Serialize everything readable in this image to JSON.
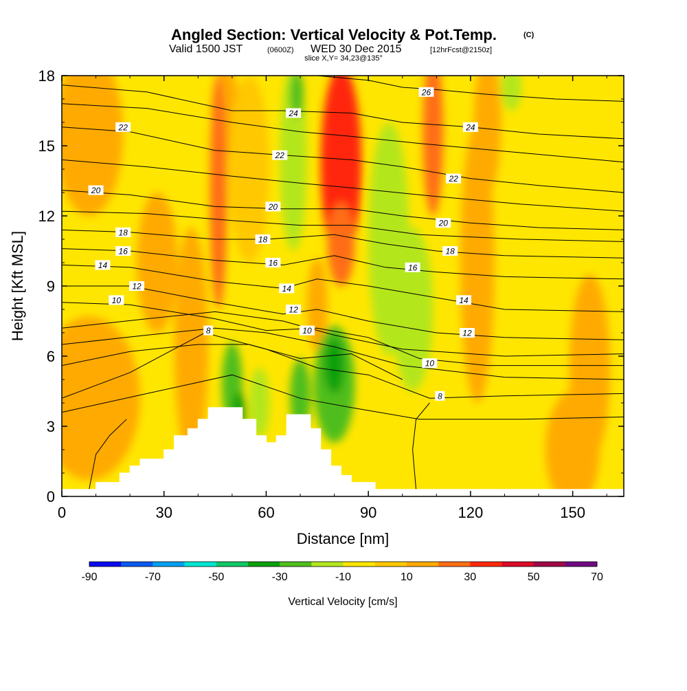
{
  "chart_data": {
    "type": "heatmap",
    "title": "Angled Section: Vertical Velocity & Pot.Temp.",
    "title_tag": "(C)",
    "subtitle": {
      "valid": "Valid 1500 JST",
      "utc": "(0600Z)",
      "date": "WED 30 Dec 2015",
      "forecast": "[12hrFcst@2150z]"
    },
    "slice_label": "slice X,Y= 34,23@135°",
    "xlabel": "Distance [nm]",
    "ylabel": "Height [Kft MSL]",
    "xlim": [
      0,
      165
    ],
    "ylim": [
      0,
      18
    ],
    "xticks": [
      0,
      30,
      60,
      90,
      120,
      150
    ],
    "yticks": [
      0,
      3,
      6,
      9,
      12,
      15,
      18
    ],
    "colorbar": {
      "label": "Vertical Velocity [cm/s]",
      "tick_labels": [
        "-90",
        "-70",
        "-50",
        "-30",
        "-10",
        "10",
        "30",
        "50",
        "70"
      ],
      "boundaries": [
        -90,
        -80,
        -70,
        -60,
        -50,
        -40,
        -30,
        -20,
        -10,
        0,
        10,
        20,
        30,
        40,
        50,
        60,
        70
      ],
      "colors": [
        "#0a0af0",
        "#0a5af0",
        "#00a0f0",
        "#00e6d2",
        "#10c864",
        "#0ca00c",
        "#50be1e",
        "#b4e61e",
        "#ffe600",
        "#ffc800",
        "#ffaa00",
        "#ff6e14",
        "#ff280a",
        "#dc0a28",
        "#a00a46",
        "#6e0a82"
      ]
    },
    "terrain": {
      "x": [
        0,
        10,
        10,
        17,
        17,
        20,
        20,
        23,
        23,
        30,
        30,
        33,
        33,
        37,
        37,
        40,
        40,
        43,
        43,
        47,
        47,
        53,
        53,
        57,
        57,
        60,
        60,
        63,
        63,
        66,
        66,
        73,
        73,
        76,
        76,
        79,
        79,
        82,
        82,
        85,
        85,
        92,
        92,
        165
      ],
      "y": [
        0.3,
        0.3,
        0.6,
        0.6,
        1.0,
        1.0,
        1.3,
        1.3,
        1.6,
        1.6,
        2.0,
        2.0,
        2.6,
        2.6,
        2.9,
        2.9,
        3.3,
        3.3,
        3.8,
        3.8,
        3.8,
        3.8,
        3.3,
        3.3,
        2.6,
        2.6,
        2.3,
        2.3,
        2.6,
        2.6,
        3.5,
        3.5,
        2.9,
        2.9,
        2.0,
        2.0,
        1.3,
        1.3,
        0.9,
        0.9,
        0.6,
        0.6,
        0.3,
        0.3
      ]
    },
    "velocity_features": [
      {
        "x": 6,
        "y": 3.6,
        "rx": 7,
        "ry": 1.5,
        "value": 25
      },
      {
        "x": 8,
        "y": 4.2,
        "rx": 15,
        "ry": 3.5,
        "value": 12
      },
      {
        "x": 8,
        "y": 15.5,
        "rx": 10,
        "ry": 3.5,
        "value": 12
      },
      {
        "x": 48,
        "y": 16.5,
        "rx": 4,
        "ry": 2.0,
        "value": 12
      },
      {
        "x": 46,
        "y": 13.0,
        "rx": 2.5,
        "ry": 5.0,
        "value": 22
      },
      {
        "x": 68,
        "y": 14.5,
        "rx": 4,
        "ry": 4.0,
        "value": -12
      },
      {
        "x": 69,
        "y": 17.2,
        "rx": 2,
        "ry": 1.0,
        "value": -30
      },
      {
        "x": 55,
        "y": 14.0,
        "rx": 6,
        "ry": 4.0,
        "value": 5
      },
      {
        "x": 82,
        "y": 14.2,
        "rx": 6,
        "ry": 4.2,
        "value": 35
      },
      {
        "x": 82,
        "y": 10.8,
        "rx": 4,
        "ry": 1.8,
        "value": 22
      },
      {
        "x": 75,
        "y": 8.2,
        "rx": 3,
        "ry": 2.0,
        "value": 15
      },
      {
        "x": 96,
        "y": 11.0,
        "rx": 6,
        "ry": 5.0,
        "value": -14
      },
      {
        "x": 103,
        "y": 8.0,
        "rx": 6,
        "ry": 3.5,
        "value": -12
      },
      {
        "x": 109,
        "y": 15.5,
        "rx": 3,
        "ry": 3.5,
        "value": 25
      },
      {
        "x": 125,
        "y": 16.0,
        "rx": 4,
        "ry": 3.0,
        "value": 14
      },
      {
        "x": 122,
        "y": 10.0,
        "rx": 5,
        "ry": 6.0,
        "value": 12
      },
      {
        "x": 132,
        "y": 17.5,
        "rx": 3,
        "ry": 1.0,
        "value": -12
      },
      {
        "x": 50,
        "y": 4.8,
        "rx": 3,
        "ry": 1.8,
        "value": -30
      },
      {
        "x": 52,
        "y": 3.5,
        "rx": 2,
        "ry": 1.0,
        "value": -32
      },
      {
        "x": 58,
        "y": 4.0,
        "rx": 3,
        "ry": 1.5,
        "value": -14
      },
      {
        "x": 70,
        "y": 4.3,
        "rx": 3,
        "ry": 1.6,
        "value": -30
      },
      {
        "x": 80,
        "y": 4.8,
        "rx": 6,
        "ry": 2.5,
        "value": -22
      },
      {
        "x": 80,
        "y": 5.6,
        "rx": 3,
        "ry": 1.2,
        "value": -32
      },
      {
        "x": 150,
        "y": 2.0,
        "rx": 8,
        "ry": 2.5,
        "value": 12
      },
      {
        "x": 155,
        "y": 5.5,
        "rx": 6,
        "ry": 4.0,
        "value": 12
      },
      {
        "x": 38,
        "y": 6.5,
        "rx": 5,
        "ry": 5.0,
        "value": 12
      },
      {
        "x": 28,
        "y": 10.0,
        "rx": 6,
        "ry": 3.0,
        "value": 12
      }
    ],
    "isentropes": [
      {
        "label": "8",
        "x": [
          0,
          20,
          42,
          60,
          75,
          90,
          108,
          130,
          165
        ],
        "y": [
          4.2,
          5.3,
          7.0,
          6.3,
          5.5,
          5.2,
          4.2,
          4.3,
          4.4
        ],
        "label_positions": [
          [
            43,
            7.1
          ],
          [
            111,
            4.3
          ]
        ]
      },
      {
        "label": "10",
        "x": [
          0,
          20,
          45,
          60,
          75,
          90,
          105,
          125,
          165
        ],
        "y": [
          8.3,
          8.2,
          7.6,
          7.1,
          7.2,
          6.8,
          5.9,
          5.6,
          5.6
        ],
        "label_positions": [
          [
            16,
            8.4
          ],
          [
            72,
            7.1
          ],
          [
            108,
            5.7
          ]
        ]
      },
      {
        "label": "12",
        "x": [
          0,
          20,
          45,
          65,
          75,
          90,
          110,
          130,
          165
        ],
        "y": [
          9.0,
          9.0,
          8.3,
          7.8,
          8.0,
          7.5,
          7.0,
          6.8,
          6.7
        ],
        "label_positions": [
          [
            22,
            9.0
          ],
          [
            68,
            8.0
          ],
          [
            119,
            7.0
          ]
        ]
      },
      {
        "label": "14",
        "x": [
          0,
          20,
          45,
          65,
          75,
          90,
          110,
          130,
          165
        ],
        "y": [
          9.9,
          9.8,
          9.2,
          8.9,
          9.3,
          9.0,
          8.5,
          8.0,
          7.9
        ],
        "label_positions": [
          [
            12,
            9.9
          ],
          [
            66,
            8.9
          ],
          [
            118,
            8.4
          ]
        ]
      },
      {
        "label": "16",
        "x": [
          0,
          20,
          45,
          65,
          80,
          95,
          110,
          130,
          165
        ],
        "y": [
          10.6,
          10.5,
          10.1,
          9.9,
          10.3,
          9.8,
          9.6,
          9.4,
          9.3
        ],
        "label_positions": [
          [
            18,
            10.5
          ],
          [
            62,
            10.0
          ],
          [
            103,
            9.8
          ]
        ]
      },
      {
        "label": "18",
        "x": [
          0,
          20,
          45,
          60,
          80,
          95,
          110,
          130,
          165
        ],
        "y": [
          11.4,
          11.3,
          11.0,
          11.0,
          11.2,
          10.8,
          10.5,
          10.3,
          10.2
        ],
        "label_positions": [
          [
            18,
            11.3
          ],
          [
            59,
            11.0
          ],
          [
            114,
            10.5
          ]
        ]
      },
      {
        "label": "20",
        "x": [
          0,
          20,
          45,
          65,
          85,
          100,
          120,
          140,
          165
        ],
        "y": [
          13.1,
          12.9,
          12.4,
          12.3,
          12.3,
          12.0,
          11.7,
          11.5,
          11.4
        ],
        "label_positions": [
          [
            10,
            13.1
          ],
          [
            62,
            12.4
          ],
          [
            112,
            11.7
          ]
        ]
      },
      {
        "label": "22",
        "x": [
          0,
          20,
          45,
          65,
          85,
          100,
          120,
          140,
          165
        ],
        "y": [
          15.8,
          15.6,
          14.8,
          14.6,
          14.4,
          14.1,
          13.6,
          13.3,
          13.0
        ],
        "label_positions": [
          [
            18,
            15.8
          ],
          [
            64,
            14.6
          ],
          [
            115,
            13.6
          ]
        ]
      },
      {
        "label": "24",
        "x": [
          0,
          25,
          50,
          65,
          85,
          100,
          120,
          140,
          165
        ],
        "y": [
          17.6,
          17.3,
          16.5,
          16.5,
          16.4,
          16.0,
          15.8,
          15.5,
          15.3
        ],
        "label_positions": [
          [
            68,
            16.4
          ],
          [
            120,
            15.8
          ]
        ]
      },
      {
        "label": "26",
        "x": [
          75,
          90,
          100,
          110,
          125,
          145,
          165
        ],
        "y": [
          18.0,
          17.8,
          17.5,
          17.4,
          17.2,
          17.0,
          16.9
        ],
        "label_positions": [
          [
            107,
            17.3
          ]
        ]
      }
    ],
    "extra_contours": [
      {
        "x": [
          0,
          20,
          40,
          55,
          70,
          85,
          100
        ],
        "y": [
          5.6,
          6.2,
          6.5,
          6.5,
          5.9,
          6.1,
          5.0
        ]
      },
      {
        "x": [
          0,
          25,
          45,
          60,
          80,
          100,
          130,
          165
        ],
        "y": [
          6.5,
          6.9,
          7.2,
          7.0,
          6.4,
          5.6,
          5.1,
          5.0
        ]
      },
      {
        "x": [
          0,
          25,
          45,
          65,
          80,
          100,
          130,
          165
        ],
        "y": [
          7.2,
          7.6,
          7.9,
          7.5,
          6.9,
          6.3,
          6.0,
          6.1
        ]
      },
      {
        "x": [
          0,
          25,
          50,
          70,
          85,
          105,
          135,
          165
        ],
        "y": [
          12.2,
          12.1,
          11.8,
          11.6,
          11.6,
          11.2,
          11.0,
          10.9
        ]
      },
      {
        "x": [
          0,
          25,
          50,
          70,
          85,
          105,
          135,
          165
        ],
        "y": [
          14.4,
          14.1,
          13.7,
          13.4,
          13.2,
          12.9,
          12.5,
          12.2
        ]
      },
      {
        "x": [
          0,
          25,
          50,
          70,
          85,
          105,
          135,
          165
        ],
        "y": [
          16.8,
          16.6,
          16.0,
          15.6,
          15.4,
          15.1,
          14.7,
          14.3
        ]
      },
      {
        "x": [
          0,
          25,
          50,
          70,
          85,
          105,
          135,
          165
        ],
        "y": [
          3.6,
          4.4,
          5.2,
          4.2,
          3.8,
          3.3,
          3.3,
          3.4
        ]
      },
      {
        "x": [
          8,
          10,
          14,
          19
        ],
        "y": [
          0.3,
          1.8,
          2.6,
          3.3
        ]
      },
      {
        "x": [
          104,
          103,
          104,
          108
        ],
        "y": [
          0.3,
          2.0,
          3.3,
          4.0
        ]
      }
    ]
  }
}
